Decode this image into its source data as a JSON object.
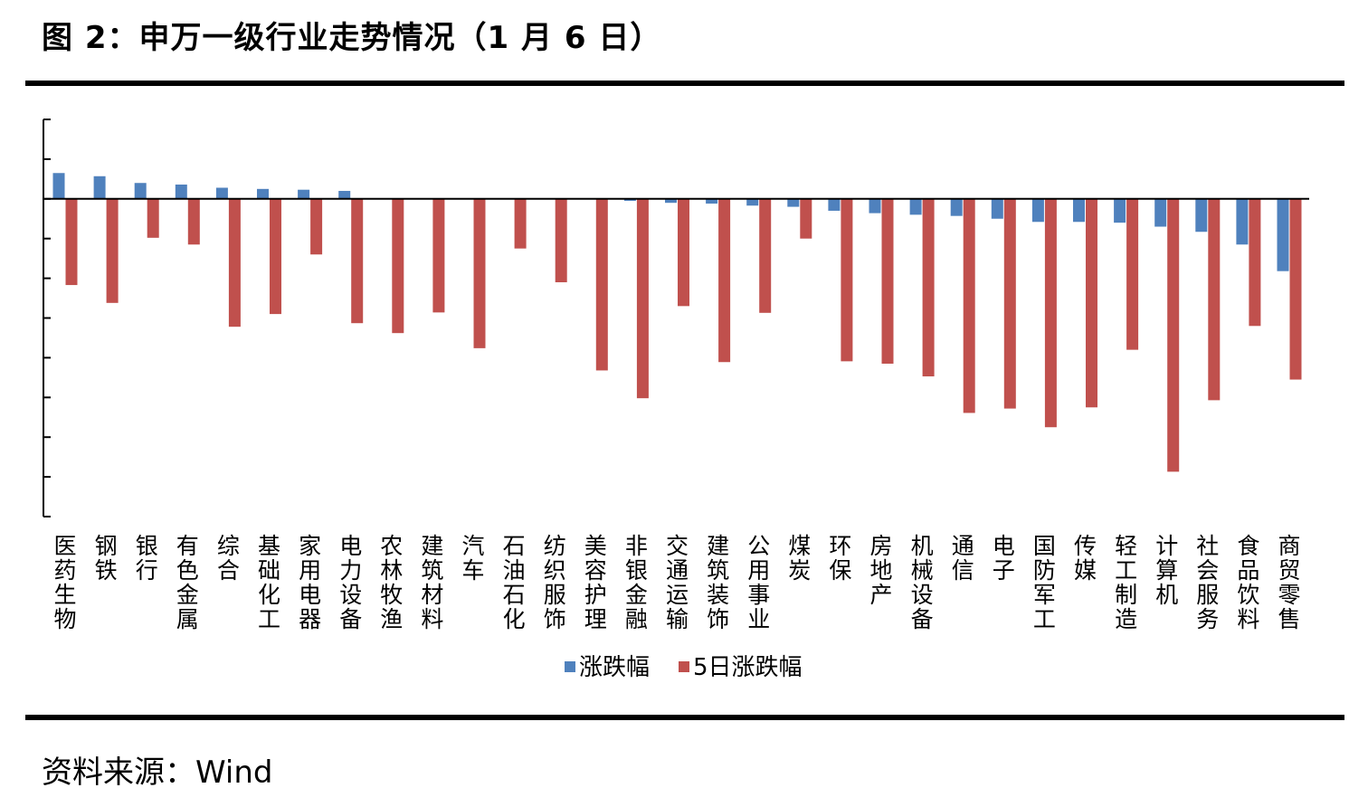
{
  "figure_title": "图 2：申万一级行业走势情况（1 月 6 日）",
  "source_text": "资料来源：Wind",
  "chart_data": {
    "type": "bar",
    "title": "",
    "xlabel": "",
    "ylabel": "",
    "ylim": [
      -8,
      2
    ],
    "grid": false,
    "legend_position": "bottom-center",
    "categories": [
      "医药生物",
      "钢铁",
      "银行",
      "有色金属",
      "综合",
      "基础化工",
      "家用电器",
      "电力设备",
      "农林牧渔",
      "建筑材料",
      "汽车",
      "石油石化",
      "纺织服饰",
      "美容护理",
      "非银金融",
      "交通运输",
      "建筑装饰",
      "公用事业",
      "煤炭",
      "环保",
      "房地产",
      "机械设备",
      "通信",
      "电子",
      "国防军工",
      "传媒",
      "轻工制造",
      "计算机",
      "社会服务",
      "食品饮料",
      "商贸零售"
    ],
    "series": [
      {
        "name": "涨跌幅",
        "color": "#4f81bd",
        "values": [
          0.65,
          0.57,
          0.4,
          0.36,
          0.28,
          0.25,
          0.23,
          0.2,
          0.0,
          0.0,
          0.0,
          0.0,
          0.0,
          0.0,
          -0.05,
          -0.1,
          -0.12,
          -0.17,
          -0.2,
          -0.3,
          -0.36,
          -0.4,
          -0.43,
          -0.5,
          -0.58,
          -0.58,
          -0.6,
          -0.7,
          -0.83,
          -1.15,
          -1.82
        ]
      },
      {
        "name": "5日涨跌幅",
        "color": "#c0504d",
        "values": [
          -2.17,
          -2.62,
          -0.98,
          -1.15,
          -3.22,
          -2.9,
          -1.4,
          -3.13,
          -3.38,
          -2.86,
          -3.76,
          -1.25,
          -2.1,
          -4.32,
          -5.02,
          -2.7,
          -4.11,
          -2.87,
          -1.0,
          -4.09,
          -4.15,
          -4.47,
          -5.39,
          -5.28,
          -5.75,
          -5.25,
          -3.8,
          -6.87,
          -5.07,
          -3.2,
          -4.55
        ]
      }
    ]
  }
}
